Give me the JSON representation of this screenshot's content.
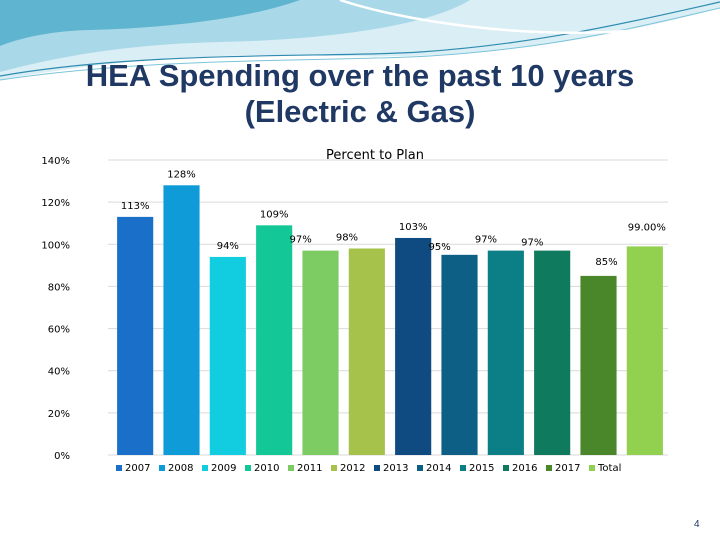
{
  "slide": {
    "title_line1": "HEA Spending over the past 10 years",
    "title_line2": "(Electric & Gas)",
    "page_number": "4"
  },
  "colors": {
    "title": "#1f3864",
    "banner_light": "#bfe3ef",
    "banner_mid": "#7cc4d9",
    "banner_dark": "#2f8bb0"
  },
  "chart_data": {
    "type": "bar",
    "title": "Percent to Plan",
    "categories": [
      "2007",
      "2008",
      "2009",
      "2010",
      "2011",
      "2012",
      "2013",
      "2014",
      "2015",
      "2016",
      "2017",
      "Total"
    ],
    "values": [
      113,
      128,
      94,
      109,
      97,
      98,
      103,
      95,
      97,
      97,
      85,
      99
    ],
    "data_labels": [
      "113%",
      "128%",
      "94%",
      "109%",
      "97%",
      "98%",
      "103%",
      "95%",
      "97%",
      "97%",
      "85%",
      "99.00%"
    ],
    "colors": [
      "#1a70c8",
      "#0f9bd7",
      "#12cde0",
      "#13c896",
      "#7ccc63",
      "#a6c24a",
      "#0f4a80",
      "#0d5f85",
      "#0c7e86",
      "#0f7a5e",
      "#4a862a",
      "#92d050"
    ],
    "ylim": [
      0,
      140
    ],
    "yticks": [
      0,
      20,
      40,
      60,
      80,
      100,
      120,
      140
    ],
    "ytick_labels": [
      "0%",
      "20%",
      "40%",
      "60%",
      "80%",
      "100%",
      "120%",
      "140%"
    ],
    "grid": true,
    "legend_position": "bottom",
    "xlabel": "",
    "ylabel": ""
  }
}
